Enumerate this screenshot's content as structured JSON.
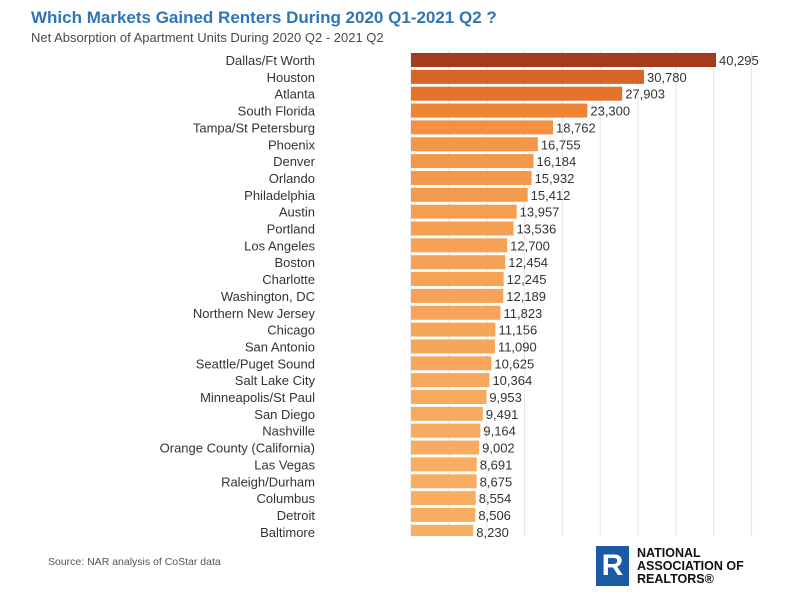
{
  "header": {
    "title": "Which Markets Gained Renters During 2020 Q1-2021 Q2 ?",
    "subtitle": "Net Absorption of Apartment Units During 2020 Q2 - 2021 Q2"
  },
  "footer": {
    "source": "Source: NAR analysis of CoStar data",
    "logo_letter": "R",
    "logo_line1": "NATIONAL",
    "logo_line2": "ASSOCIATION OF",
    "logo_line3": "REALTORS®"
  },
  "colors": {
    "title": "#2f76b6",
    "bar_max": "#a63a1d",
    "bar_mid": "#ee7d2c",
    "bar_min": "#f8ae63",
    "logo": "#1d5aa6"
  },
  "chart_data": {
    "type": "bar",
    "orientation": "horizontal",
    "title": "Which Markets Gained Renters During 2020 Q1-2021 Q2 ?",
    "subtitle": "Net Absorption of Apartment Units During 2020 Q2 - 2021 Q2",
    "xlabel": "",
    "ylabel": "",
    "xlim": [
      0,
      45000
    ],
    "grid": true,
    "legend": "none",
    "data_labels": true,
    "categories": [
      "Dallas/Ft Worth",
      "Houston",
      "Atlanta",
      "South Florida",
      "Tampa/St Petersburg",
      "Phoenix",
      "Denver",
      "Orlando",
      "Philadelphia",
      "Austin",
      "Portland",
      "Los Angeles",
      "Boston",
      "Charlotte",
      "Washington, DC",
      "Northern New Jersey",
      "Chicago",
      "San Antonio",
      "Seattle/Puget Sound",
      "Salt Lake City",
      "Minneapolis/St Paul",
      "San Diego",
      "Nashville",
      "Orange County (California)",
      "Las Vegas",
      "Raleigh/Durham",
      "Columbus",
      "Detroit",
      "Baltimore"
    ],
    "values": [
      40295,
      30780,
      27903,
      23300,
      18762,
      16755,
      16184,
      15932,
      15412,
      13957,
      13536,
      12700,
      12454,
      12245,
      12189,
      11823,
      11156,
      11090,
      10625,
      10364,
      9953,
      9491,
      9164,
      9002,
      8691,
      8675,
      8554,
      8506,
      8230
    ],
    "value_labels": [
      "40,295",
      "30,780",
      "27,903",
      "23,300",
      "18,762",
      "16,755",
      "16,184",
      "15,932",
      "15,412",
      "13,957",
      "13,536",
      "12,700",
      "12,454",
      "12,245",
      "12,189",
      "11,823",
      "11,156",
      "11,090",
      "10,625",
      "10,364",
      "9,953",
      "9,491",
      "9,164",
      "9,002",
      "8,691",
      "8,675",
      "8,554",
      "8,506",
      "8,230"
    ]
  }
}
